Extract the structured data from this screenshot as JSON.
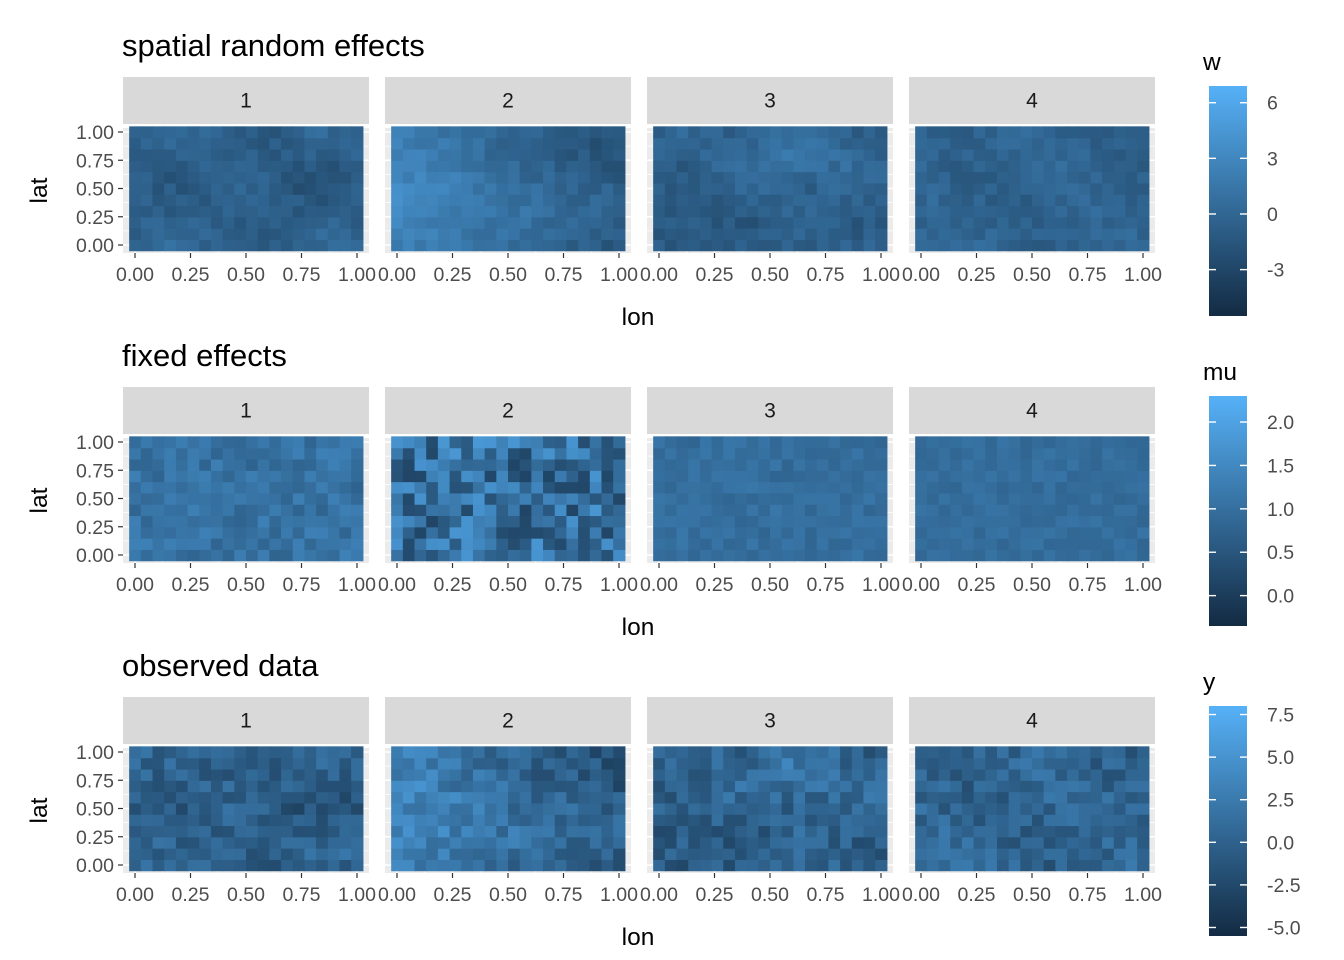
{
  "chart_data": [
    {
      "type": "heatmap",
      "title": "spatial random effects",
      "facets": [
        "1",
        "2",
        "3",
        "4"
      ],
      "xlabel": "lon",
      "ylabel": "lat",
      "xticks": [
        "0.00",
        "0.25",
        "0.50",
        "0.75",
        "1.00"
      ],
      "yticks": [
        "0.00",
        "0.25",
        "0.50",
        "0.75",
        "1.00"
      ],
      "xlim": [
        0,
        1
      ],
      "ylim": [
        0,
        1
      ],
      "grid": true,
      "grid_size": {
        "cols": 20,
        "rows": 11
      },
      "fill_scale": {
        "name": "w",
        "low": -5.5,
        "high": 6.9,
        "low_color": "#132b43",
        "high_color": "#56b1f7",
        "breaks": [
          "6",
          "3",
          "0",
          "-3"
        ],
        "break_values": [
          6,
          3,
          0,
          -3
        ]
      },
      "facet_patterns": {
        "1": "mostly dark blue (about -3 to 2), darker patches in the middle band",
        "2": "brightest at left (lon 0-0.25, up to about 6), darker toward the right",
        "3": "mixed; brighter patch near lon 0.5-0.75, lat 0.75, dark lower-left",
        "4": "fairly uniform dark-to-mid blue (about -2 to 1)"
      }
    },
    {
      "type": "heatmap",
      "title": "fixed effects",
      "facets": [
        "1",
        "2",
        "3",
        "4"
      ],
      "xlabel": "lon",
      "ylabel": "lat",
      "xticks": [
        "0.00",
        "0.25",
        "0.50",
        "0.75",
        "1.00"
      ],
      "yticks": [
        "0.00",
        "0.25",
        "0.50",
        "0.75",
        "1.00"
      ],
      "xlim": [
        0,
        1
      ],
      "ylim": [
        0,
        1
      ],
      "grid": true,
      "grid_size": {
        "cols": 20,
        "rows": 11
      },
      "fill_scale": {
        "name": "mu",
        "low": -0.35,
        "high": 2.3,
        "low_color": "#132b43",
        "high_color": "#56b1f7",
        "breaks": [
          "2.0",
          "1.5",
          "1.0",
          "0.5",
          "0.0"
        ],
        "break_values": [
          2.0,
          1.5,
          1.0,
          0.5,
          0.0
        ]
      },
      "facet_patterns": {
        "1": "moderate variation around 1.0-1.6",
        "2": "high cell-to-cell variation, about -0.3 to 2.2",
        "3": "low variation around 1.0-1.3",
        "4": "low variation around 1.0-1.2"
      }
    },
    {
      "type": "heatmap",
      "title": "observed data",
      "facets": [
        "1",
        "2",
        "3",
        "4"
      ],
      "xlabel": "lon",
      "ylabel": "lat",
      "xticks": [
        "0.00",
        "0.25",
        "0.50",
        "0.75",
        "1.00"
      ],
      "yticks": [
        "0.00",
        "0.25",
        "0.50",
        "0.75",
        "1.00"
      ],
      "xlim": [
        0,
        1
      ],
      "ylim": [
        0,
        1
      ],
      "grid": true,
      "grid_size": {
        "cols": 20,
        "rows": 11
      },
      "fill_scale": {
        "name": "y",
        "low": -5.5,
        "high": 8.0,
        "low_color": "#132b43",
        "high_color": "#56b1f7",
        "breaks": [
          "7.5",
          "5.0",
          "2.5",
          "0.0",
          "-2.5",
          "-5.0"
        ],
        "break_values": [
          7.5,
          5.0,
          2.5,
          0.0,
          -2.5,
          -5.0
        ]
      },
      "facet_patterns": {
        "1": "mostly dark with mid-blue patches (about -3 to 3)",
        "2": "bright at left (up to about 7), darker at right",
        "3": "mixed; brighter near lon 0.5-0.75, lat 0.75",
        "4": "mid blue with speckled variation (about -2 to 3)"
      }
    }
  ]
}
